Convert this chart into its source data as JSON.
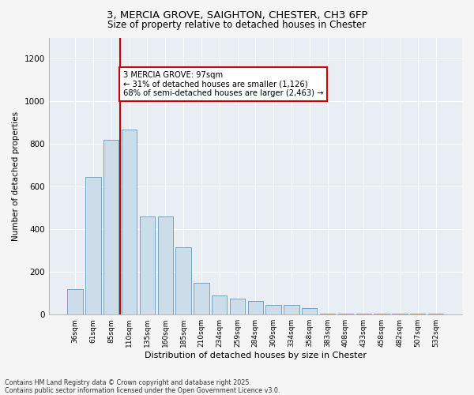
{
  "title_line1": "3, MERCIA GROVE, SAIGHTON, CHESTER, CH3 6FP",
  "title_line2": "Size of property relative to detached houses in Chester",
  "xlabel": "Distribution of detached houses by size in Chester",
  "ylabel": "Number of detached properties",
  "categories": [
    "36sqm",
    "61sqm",
    "85sqm",
    "110sqm",
    "135sqm",
    "160sqm",
    "185sqm",
    "210sqm",
    "234sqm",
    "259sqm",
    "284sqm",
    "309sqm",
    "334sqm",
    "358sqm",
    "383sqm",
    "408sqm",
    "433sqm",
    "458sqm",
    "482sqm",
    "507sqm",
    "532sqm"
  ],
  "values": [
    120,
    645,
    820,
    870,
    460,
    460,
    315,
    150,
    90,
    75,
    65,
    45,
    45,
    30,
    5,
    5,
    5,
    5,
    5,
    5,
    5
  ],
  "bar_color": "#ccdce8",
  "bar_edge_color": "#6699bb",
  "vline_color": "#cc0000",
  "annotation_text": "3 MERCIA GROVE: 97sqm\n← 31% of detached houses are smaller (1,126)\n68% of semi-detached houses are larger (2,463) →",
  "annotation_box_edgecolor": "#cc0000",
  "ylim": [
    0,
    1300
  ],
  "yticks": [
    0,
    200,
    400,
    600,
    800,
    1000,
    1200
  ],
  "footer_line1": "Contains HM Land Registry data © Crown copyright and database right 2025.",
  "footer_line2": "Contains public sector information licensed under the Open Government Licence v3.0.",
  "bg_color": "#f5f5f5",
  "plot_bg_color": "#e8eef4"
}
